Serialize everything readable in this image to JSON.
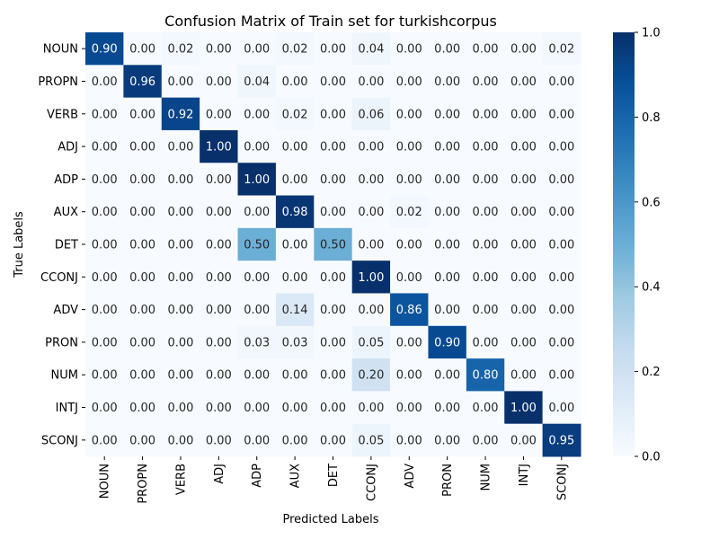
{
  "chart_data": {
    "type": "heatmap",
    "title": "Confusion Matrix of Train set for turkishcorpus",
    "xlabel": "Predicted Labels",
    "ylabel": "True Labels",
    "x_categories": [
      "NOUN",
      "PROPN",
      "VERB",
      "ADJ",
      "ADP",
      "AUX",
      "DET",
      "CCONJ",
      "ADV",
      "PRON",
      "NUM",
      "INTJ",
      "SCONJ"
    ],
    "y_categories": [
      "NOUN",
      "PROPN",
      "VERB",
      "ADJ",
      "ADP",
      "AUX",
      "DET",
      "CCONJ",
      "ADV",
      "PRON",
      "NUM",
      "INTJ",
      "SCONJ"
    ],
    "values": [
      [
        0.9,
        0.0,
        0.02,
        0.0,
        0.0,
        0.02,
        0.0,
        0.04,
        0.0,
        0.0,
        0.0,
        0.0,
        0.02
      ],
      [
        0.0,
        0.96,
        0.0,
        0.0,
        0.04,
        0.0,
        0.0,
        0.0,
        0.0,
        0.0,
        0.0,
        0.0,
        0.0
      ],
      [
        0.0,
        0.0,
        0.92,
        0.0,
        0.0,
        0.02,
        0.0,
        0.06,
        0.0,
        0.0,
        0.0,
        0.0,
        0.0
      ],
      [
        0.0,
        0.0,
        0.0,
        1.0,
        0.0,
        0.0,
        0.0,
        0.0,
        0.0,
        0.0,
        0.0,
        0.0,
        0.0
      ],
      [
        0.0,
        0.0,
        0.0,
        0.0,
        1.0,
        0.0,
        0.0,
        0.0,
        0.0,
        0.0,
        0.0,
        0.0,
        0.0
      ],
      [
        0.0,
        0.0,
        0.0,
        0.0,
        0.0,
        0.98,
        0.0,
        0.0,
        0.02,
        0.0,
        0.0,
        0.0,
        0.0
      ],
      [
        0.0,
        0.0,
        0.0,
        0.0,
        0.5,
        0.0,
        0.5,
        0.0,
        0.0,
        0.0,
        0.0,
        0.0,
        0.0
      ],
      [
        0.0,
        0.0,
        0.0,
        0.0,
        0.0,
        0.0,
        0.0,
        1.0,
        0.0,
        0.0,
        0.0,
        0.0,
        0.0
      ],
      [
        0.0,
        0.0,
        0.0,
        0.0,
        0.0,
        0.14,
        0.0,
        0.0,
        0.86,
        0.0,
        0.0,
        0.0,
        0.0
      ],
      [
        0.0,
        0.0,
        0.0,
        0.0,
        0.03,
        0.03,
        0.0,
        0.05,
        0.0,
        0.9,
        0.0,
        0.0,
        0.0
      ],
      [
        0.0,
        0.0,
        0.0,
        0.0,
        0.0,
        0.0,
        0.0,
        0.2,
        0.0,
        0.0,
        0.8,
        0.0,
        0.0
      ],
      [
        0.0,
        0.0,
        0.0,
        0.0,
        0.0,
        0.0,
        0.0,
        0.0,
        0.0,
        0.0,
        0.0,
        1.0,
        0.0
      ],
      [
        0.0,
        0.0,
        0.0,
        0.0,
        0.0,
        0.0,
        0.0,
        0.05,
        0.0,
        0.0,
        0.0,
        0.0,
        0.95
      ]
    ],
    "value_format": "2 decimals",
    "colormap": "Blues",
    "colorbar": {
      "range": [
        0.0,
        1.0
      ],
      "ticks": [
        "0.0",
        "0.2",
        "0.4",
        "0.6",
        "0.8",
        "1.0"
      ],
      "placement": "right"
    },
    "grid": false
  }
}
